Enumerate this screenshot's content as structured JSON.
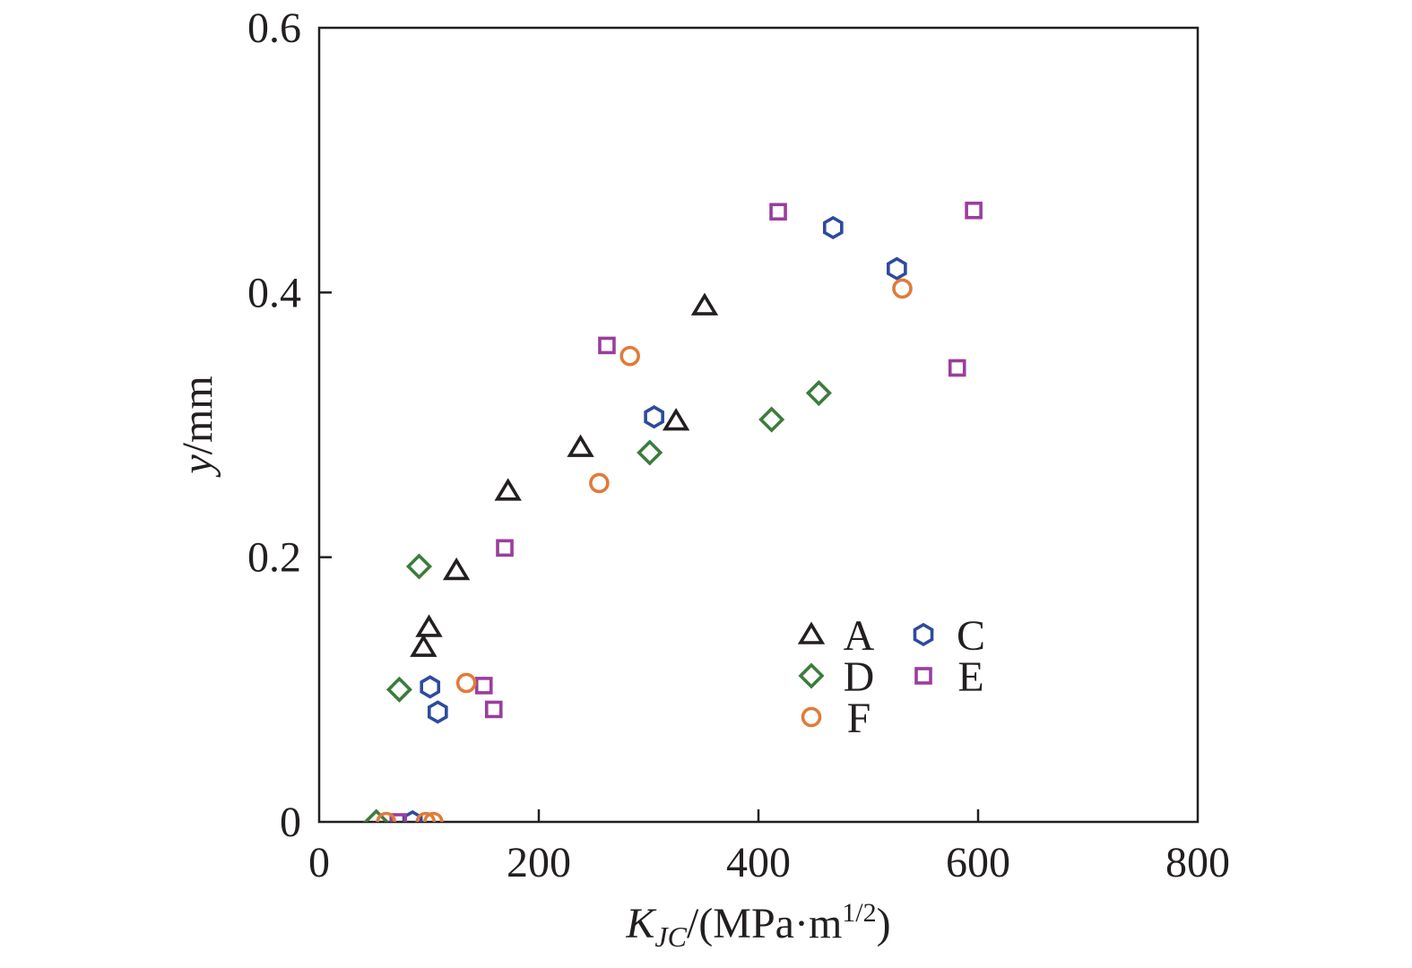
{
  "chart_data": {
    "type": "scatter",
    "xlabel": {
      "main": "K",
      "sub": "JC",
      "rest": "/(MPa·m",
      "sup": "1/2",
      "close": ")"
    },
    "ylabel": {
      "var": "y",
      "unit": "/mm"
    },
    "xlim": [
      0,
      800
    ],
    "ylim": [
      0,
      0.6
    ],
    "xticks": [
      "0",
      "200",
      "400",
      "600",
      "800"
    ],
    "yticks": [
      "0",
      "0.2",
      "0.4",
      "0.6"
    ],
    "grid": false,
    "legend_position": "lower-right",
    "series": [
      {
        "name": "A",
        "marker": "triangle",
        "color": "#231f20",
        "points": [
          [
            95,
            0.132
          ],
          [
            100,
            0.147
          ],
          [
            125,
            0.19
          ],
          [
            172,
            0.25
          ],
          [
            238,
            0.283
          ],
          [
            325,
            0.303
          ],
          [
            351,
            0.39
          ]
        ]
      },
      {
        "name": "C",
        "marker": "hexagon",
        "color": "#2e4a9e",
        "points": [
          [
            85,
            0
          ],
          [
            101,
            0.102
          ],
          [
            108,
            0.083
          ],
          [
            305,
            0.306
          ],
          [
            468,
            0.449
          ],
          [
            526,
            0.418
          ]
        ]
      },
      {
        "name": "D",
        "marker": "diamond",
        "color": "#3b7d3b",
        "points": [
          [
            52,
            0
          ],
          [
            73,
            0.1
          ],
          [
            91,
            0.193
          ],
          [
            301,
            0.279
          ],
          [
            412,
            0.304
          ],
          [
            455,
            0.324
          ]
        ]
      },
      {
        "name": "E",
        "marker": "square",
        "color": "#9b3d9e",
        "points": [
          [
            72,
            0
          ],
          [
            150,
            0.103
          ],
          [
            159,
            0.085
          ],
          [
            169,
            0.207
          ],
          [
            262,
            0.36
          ],
          [
            418,
            0.461
          ],
          [
            581,
            0.343
          ],
          [
            596,
            0.462
          ]
        ]
      },
      {
        "name": "F",
        "marker": "circle",
        "color": "#e07b39",
        "points": [
          [
            61,
            0
          ],
          [
            97,
            0
          ],
          [
            104,
            0
          ],
          [
            134,
            0.105
          ],
          [
            255,
            0.256
          ],
          [
            283,
            0.352
          ],
          [
            531,
            0.403
          ]
        ]
      }
    ],
    "legend_order": [
      "A",
      "C",
      "D",
      "E",
      "F"
    ]
  }
}
